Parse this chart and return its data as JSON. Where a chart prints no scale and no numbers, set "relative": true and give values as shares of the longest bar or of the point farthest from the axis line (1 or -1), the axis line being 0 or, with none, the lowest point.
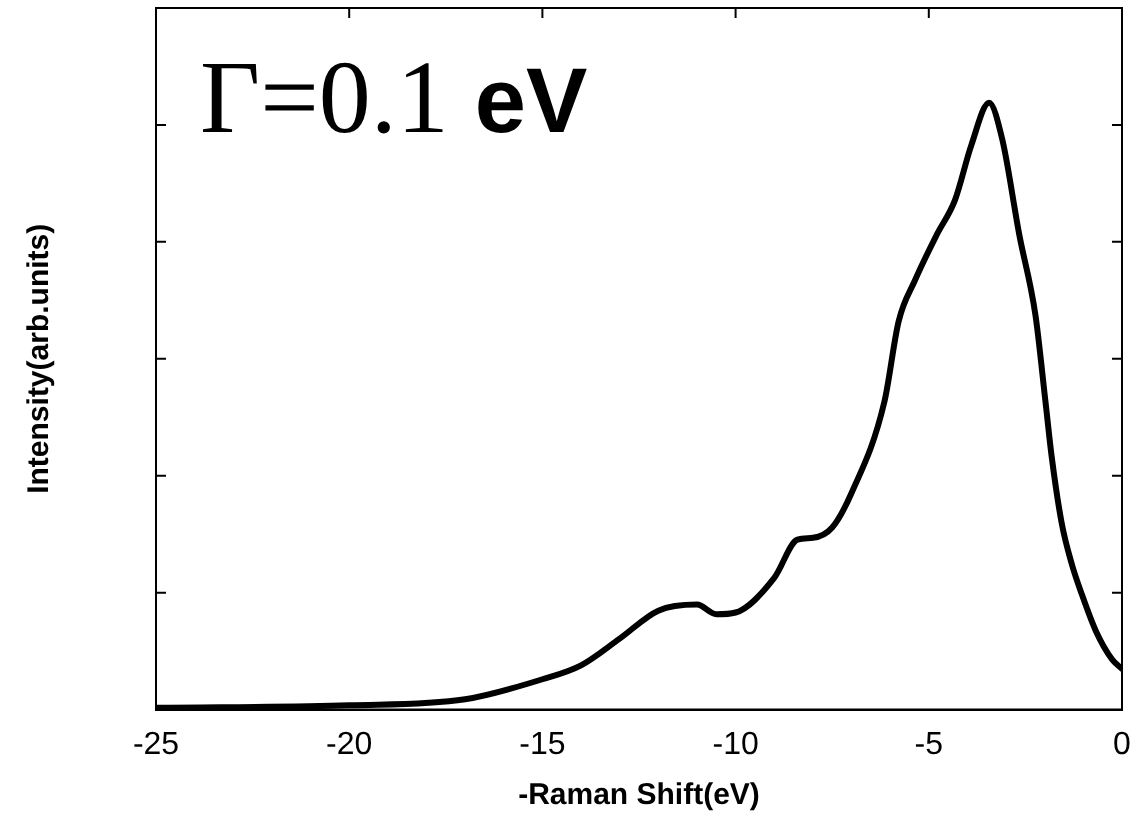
{
  "chart_data": {
    "type": "line",
    "relative": true,
    "xlabel": "-Raman Shift(eV)",
    "ylabel": "Intensity(arb.units)",
    "annotations": [
      "Γ=0.1 eV"
    ],
    "xlim": [
      -25,
      0
    ],
    "xticks": [
      -25,
      -20,
      -15,
      -10,
      -5,
      0
    ],
    "grid": false,
    "legend": false,
    "marker": "none",
    "line_style": "solid",
    "series": [
      {
        "color": "#000000",
        "x": [
          -25,
          -20,
          -17,
          -15,
          -14,
          -13,
          -12,
          -11,
          -10.5,
          -10,
          -9,
          -8.4,
          -8,
          -7.5,
          -7,
          -6.15,
          -5.78,
          -5.36,
          -4.79,
          -4.32,
          -3.9,
          -3.44,
          -3.1,
          -2.66,
          -2.24,
          -1.98,
          -1.82,
          -1.56,
          -1.3,
          -1.04,
          -0.68,
          -0.26,
          0
        ],
        "values": [
          0.003,
          0.007,
          0.017,
          0.05,
          0.073,
          0.117,
          0.163,
          0.173,
          0.157,
          0.16,
          0.217,
          0.28,
          0.283,
          0.3,
          0.357,
          0.507,
          0.64,
          0.707,
          0.783,
          0.84,
          0.93,
          1,
          0.94,
          0.783,
          0.65,
          0.507,
          0.417,
          0.307,
          0.24,
          0.19,
          0.13,
          0.083,
          0.067
        ]
      }
    ]
  }
}
